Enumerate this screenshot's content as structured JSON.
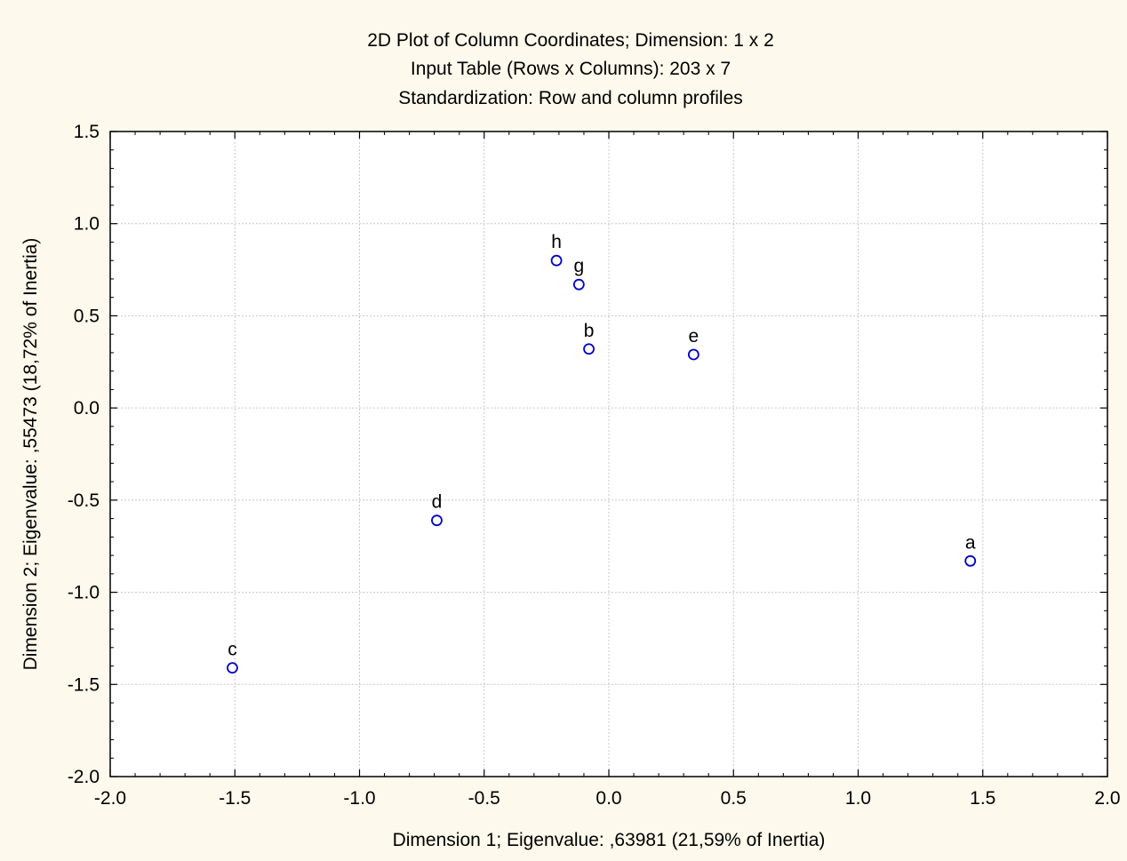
{
  "chart_data": {
    "type": "scatter",
    "title_lines": [
      "2D Plot of Column Coordinates; Dimension:  1 x  2",
      "Input Table (Rows x Columns): 203 x 7",
      "Standardization: Row and column profiles"
    ],
    "xlabel": "Dimension 1; Eigenvalue: ,63981 (21,59% of Inertia)",
    "ylabel": "Dimension 2; Eigenvalue: ,55473 (18,72% of Inertia)",
    "xlim": [
      -2.0,
      2.0
    ],
    "ylim": [
      -2.0,
      1.5
    ],
    "xticks": [
      -2.0,
      -1.5,
      -1.0,
      -0.5,
      0.0,
      0.5,
      1.0,
      1.5,
      2.0
    ],
    "yticks": [
      -2.0,
      -1.5,
      -1.0,
      -0.5,
      0.0,
      0.5,
      1.0,
      1.5
    ],
    "xtick_labels": [
      "-2.0",
      "-1.5",
      "-1.0",
      "-0.5",
      "0.0",
      "0.5",
      "1.0",
      "1.5",
      "2.0"
    ],
    "ytick_labels": [
      "-2.0",
      "-1.5",
      "-1.0",
      "-0.5",
      "0.0",
      "0.5",
      "1.0",
      "1.5"
    ],
    "grid": true,
    "colors": {
      "background": "#fdf9ec",
      "plot_area": "#ffffff",
      "marker": "#0000cc",
      "grid": "#c8c8c8"
    },
    "points": [
      {
        "label": "a",
        "x": 1.45,
        "y": -0.83
      },
      {
        "label": "b",
        "x": -0.08,
        "y": 0.32
      },
      {
        "label": "c",
        "x": -1.51,
        "y": -1.41
      },
      {
        "label": "d",
        "x": -0.69,
        "y": -0.61
      },
      {
        "label": "e",
        "x": 0.34,
        "y": 0.29
      },
      {
        "label": "g",
        "x": -0.12,
        "y": 0.67
      },
      {
        "label": "h",
        "x": -0.21,
        "y": 0.8
      }
    ]
  }
}
